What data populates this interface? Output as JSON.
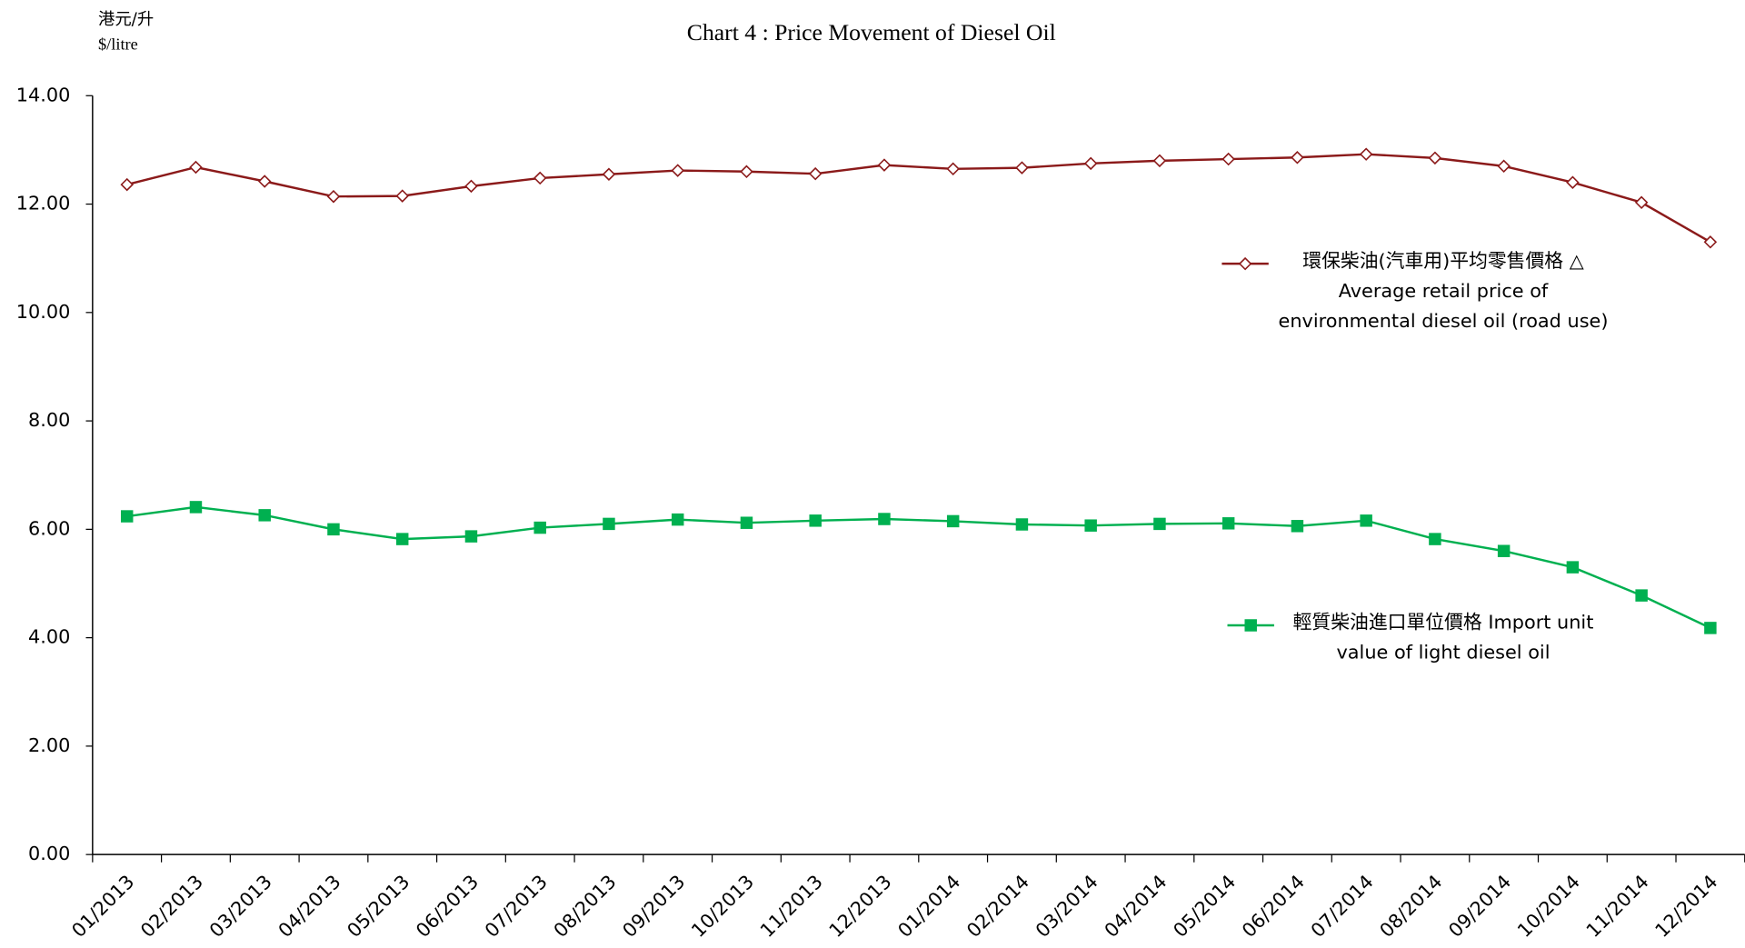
{
  "chart_data": {
    "type": "line",
    "title": "Chart 4 : Price Movement of Diesel Oil",
    "y_label_zh": "港元/升",
    "y_label": "$/litre",
    "categories": [
      "01/2013",
      "02/2013",
      "03/2013",
      "04/2013",
      "05/2013",
      "06/2013",
      "07/2013",
      "08/2013",
      "09/2013",
      "10/2013",
      "11/2013",
      "12/2013",
      "01/2014",
      "02/2014",
      "03/2014",
      "04/2014",
      "05/2014",
      "06/2014",
      "07/2014",
      "08/2014",
      "09/2014",
      "10/2014",
      "11/2014",
      "12/2014"
    ],
    "series": [
      {
        "name": "環保柴油(汽車用)平均零售價格 △ Average retail price of environmental diesel oil (road use)",
        "color": "#8b1a1a",
        "marker": "diamond",
        "values": [
          12.36,
          12.68,
          12.42,
          12.14,
          12.15,
          12.33,
          12.48,
          12.55,
          12.62,
          12.6,
          12.56,
          12.72,
          12.65,
          12.67,
          12.75,
          12.8,
          12.83,
          12.86,
          12.92,
          12.85,
          12.7,
          12.4,
          12.03,
          11.3
        ]
      },
      {
        "name": "輕質柴油進口單位價格 Import unit value of light diesel oil",
        "color": "#00b050",
        "marker": "square",
        "values": [
          6.24,
          6.41,
          6.26,
          6.0,
          5.82,
          5.87,
          6.03,
          6.1,
          6.18,
          6.12,
          6.16,
          6.19,
          6.15,
          6.09,
          6.07,
          6.1,
          6.11,
          6.06,
          6.16,
          5.82,
          5.6,
          5.3,
          4.78,
          4.18
        ]
      }
    ],
    "ylim": [
      0,
      14
    ],
    "yticks": [
      {
        "value": 0,
        "label": "0.00"
      },
      {
        "value": 2,
        "label": "2.00"
      },
      {
        "value": 4,
        "label": "4.00"
      },
      {
        "value": 6,
        "label": "6.00"
      },
      {
        "value": 8,
        "label": "8.00"
      },
      {
        "value": 10,
        "label": "10.00"
      },
      {
        "value": 12,
        "label": "12.00"
      },
      {
        "value": 14,
        "label": "14.00"
      }
    ],
    "grid": false
  }
}
